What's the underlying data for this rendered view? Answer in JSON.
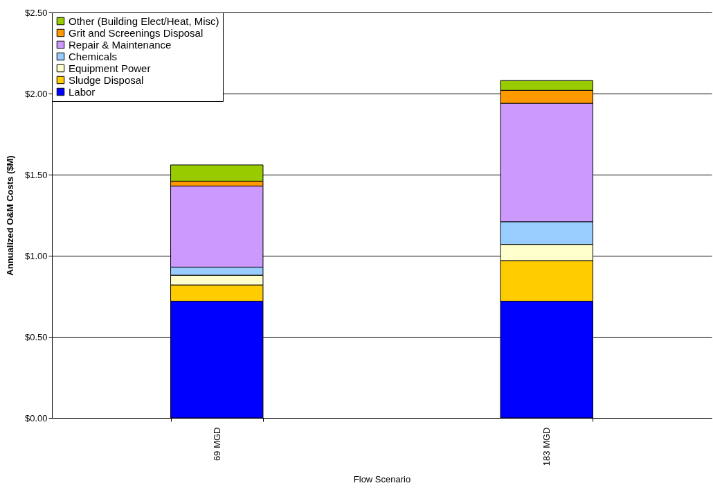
{
  "chart_data": {
    "type": "bar",
    "stacked": true,
    "xlabel": "Flow Scenario",
    "ylabel": "Annualized O&M Costs ($M)",
    "categories": [
      "69 MGD",
      "183 MGD"
    ],
    "series": [
      {
        "name": "Labor",
        "color": "#0000ff",
        "values": [
          0.72,
          0.72
        ]
      },
      {
        "name": "Sludge Disposal",
        "color": "#ffcc00",
        "values": [
          0.1,
          0.25
        ]
      },
      {
        "name": "Equipment Power",
        "color": "#ffffcc",
        "values": [
          0.06,
          0.1
        ]
      },
      {
        "name": "Chemicals",
        "color": "#99ccff",
        "values": [
          0.05,
          0.14
        ]
      },
      {
        "name": "Repair & Maintenance",
        "color": "#cc99ff",
        "values": [
          0.5,
          0.73
        ]
      },
      {
        "name": "Grit and Screenings Disposal",
        "color": "#ff9900",
        "values": [
          0.03,
          0.08
        ]
      },
      {
        "name": "Other (Building Elect/Heat, Misc)",
        "color": "#99cc00",
        "values": [
          0.1,
          0.06
        ]
      }
    ],
    "ylim": [
      0,
      2.5
    ],
    "yticks": [
      {
        "value": 0,
        "label": "$0.00"
      },
      {
        "value": 0.5,
        "label": "$0.50"
      },
      {
        "value": 1,
        "label": "$1.00"
      },
      {
        "value": 1.5,
        "label": "$1.50"
      },
      {
        "value": 2,
        "label": "$2.00"
      },
      {
        "value": 2.5,
        "label": "$2.50"
      }
    ],
    "grid": "y",
    "legend": "top left"
  }
}
